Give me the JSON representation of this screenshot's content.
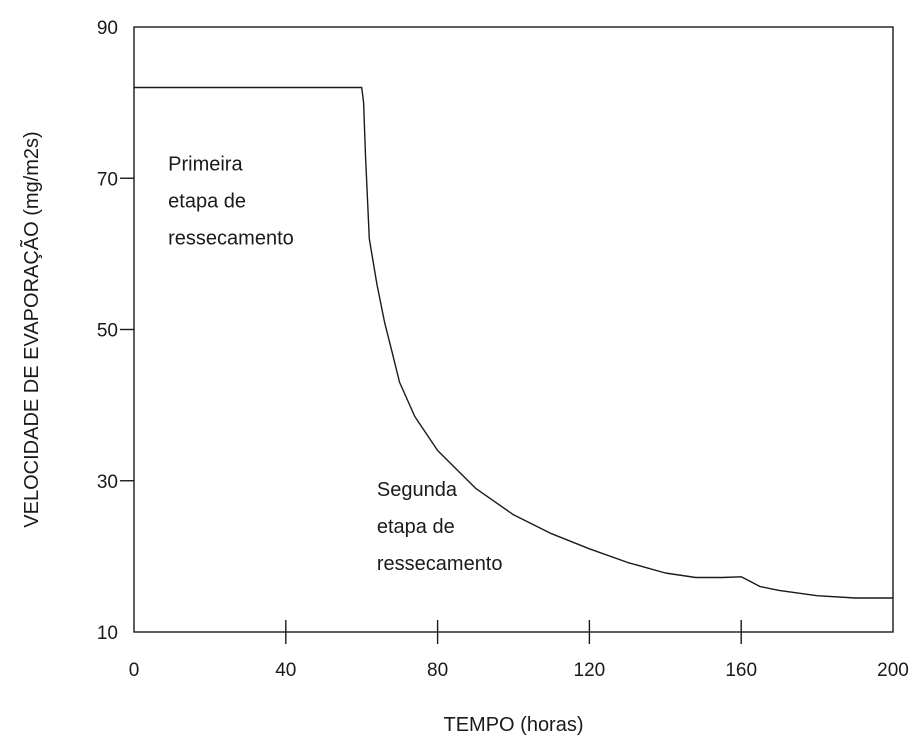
{
  "chart_data": {
    "type": "line",
    "title": "",
    "xlabel": "TEMPO (horas)",
    "ylabel": "VELOCIDADE DE EVAPORAÇÃO (mg/m2s)",
    "xlim": [
      0,
      200
    ],
    "ylim": [
      10,
      90
    ],
    "xticks": [
      0,
      40,
      80,
      120,
      160,
      200
    ],
    "xtick_labels": [
      "0",
      "40",
      "80",
      "120",
      "160",
      "200"
    ],
    "yticks": [
      10,
      30,
      50,
      70,
      90
    ],
    "ytick_labels": [
      "10",
      "30",
      "50",
      "70",
      "90"
    ],
    "grid": false,
    "series": [
      {
        "color": "#1a1a1a",
        "x": [
          0,
          60,
          60.5,
          61,
          62,
          64,
          66,
          68,
          70,
          74,
          80,
          90,
          100,
          110,
          120,
          130,
          140,
          148,
          155,
          160,
          162,
          165,
          170,
          180,
          190,
          200
        ],
        "y": [
          82,
          82,
          80,
          73,
          62,
          56,
          51,
          47,
          43,
          38.5,
          34,
          29,
          25.5,
          23,
          21,
          19.2,
          17.8,
          17.2,
          17.2,
          17.3,
          16.8,
          16,
          15.5,
          14.8,
          14.5,
          14.5
        ]
      }
    ],
    "annotations": [
      {
        "lines": [
          "Primeira",
          "etapa de",
          "ressecamento"
        ],
        "x": 9,
        "y": 71
      },
      {
        "lines": [
          "Segunda",
          "etapa de",
          "ressecamento"
        ],
        "x": 64,
        "y": 28
      }
    ]
  }
}
